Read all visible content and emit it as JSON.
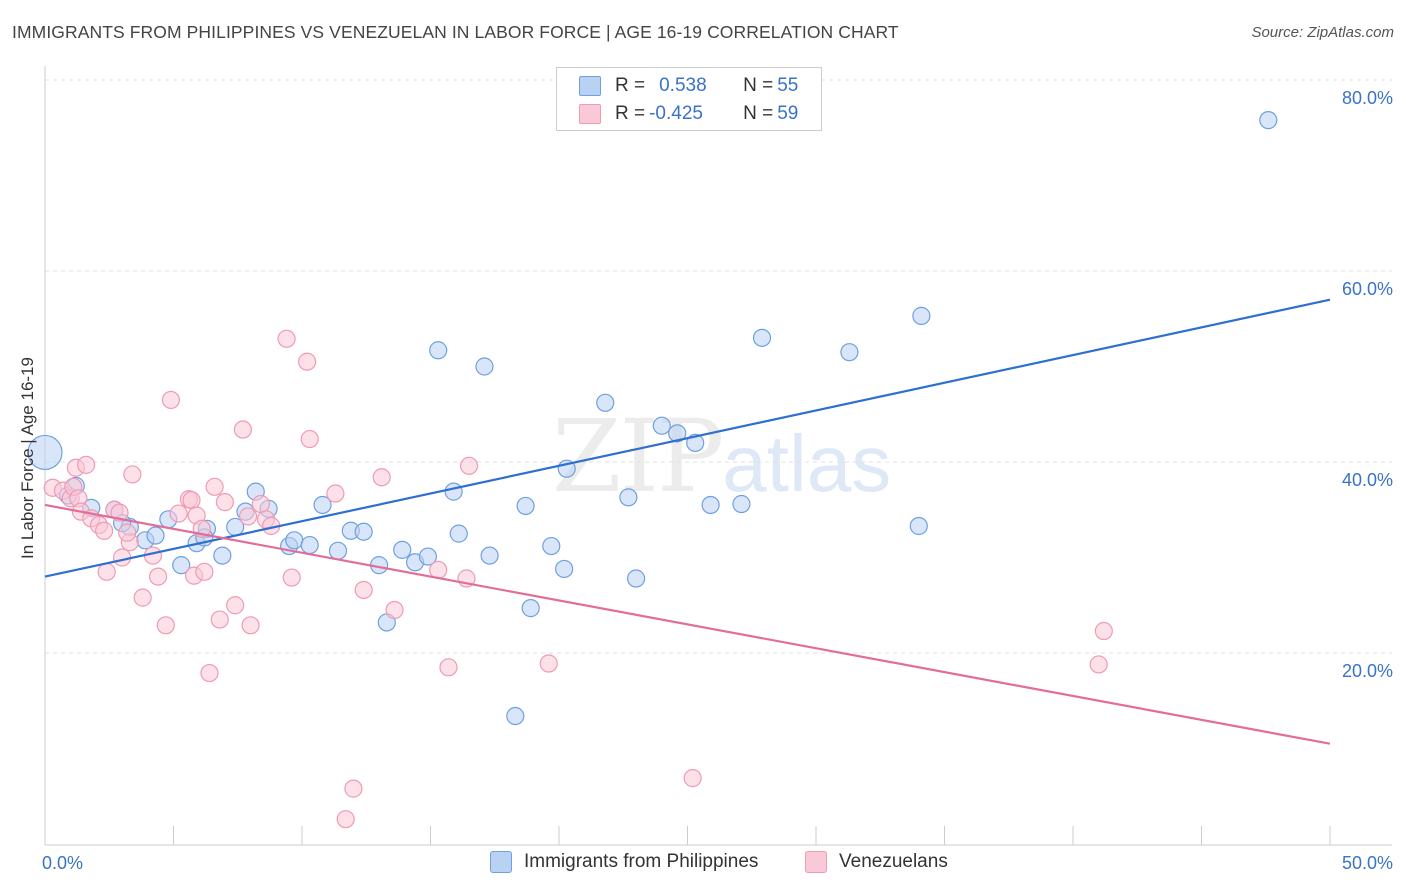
{
  "title": "IMMIGRANTS FROM PHILIPPINES VS VENEZUELAN IN LABOR FORCE | AGE 16-19 CORRELATION CHART",
  "source": "Source: ZipAtlas.com",
  "watermark": {
    "zip": "ZIP",
    "atlas": "atlas"
  },
  "legend": {
    "rows": [
      {
        "r_label": "R = ",
        "r_value": "0.538",
        "n_label": "N = ",
        "n_value": "55",
        "color": "#a8c8f0"
      },
      {
        "r_label": "R = ",
        "r_value": "-0.425",
        "n_label": "N = ",
        "n_value": "59",
        "color": "#f6b8cc"
      }
    ]
  },
  "bottom_legend": [
    "Immigrants from Philippines",
    "Venezuelans"
  ],
  "chart_data": {
    "type": "scatter",
    "title": "IMMIGRANTS FROM PHILIPPINES VS VENEZUELAN IN LABOR FORCE | AGE 16-19 CORRELATION CHART",
    "xlabel": "",
    "ylabel": "In Labor Force | Age 16-19",
    "xlim": [
      0,
      50
    ],
    "ylim": [
      0,
      80
    ],
    "x_tick_labels": [
      "0.0%",
      "50.0%"
    ],
    "y_tick_labels": [
      "20.0%",
      "40.0%",
      "60.0%",
      "80.0%"
    ],
    "y_ticks": [
      20,
      40,
      60,
      80
    ],
    "grid": true,
    "legend_position": "top-center",
    "series": [
      {
        "name": "Immigrants from Philippines",
        "color": "#6fa0e0",
        "fill": "#b9d2f4",
        "line_color": "#2f6fcf",
        "trend": {
          "x": [
            0,
            50
          ],
          "y": [
            28.0,
            57.0
          ]
        },
        "points": [
          [
            0.0,
            41.0
          ],
          [
            0.9,
            36.5
          ],
          [
            1.8,
            35.2
          ],
          [
            2.7,
            35.0
          ],
          [
            3.3,
            33.2
          ],
          [
            3.9,
            31.8
          ],
          [
            4.3,
            32.3
          ],
          [
            4.8,
            34.0
          ],
          [
            5.3,
            29.2
          ],
          [
            5.9,
            31.5
          ],
          [
            6.3,
            33.0
          ],
          [
            6.9,
            30.2
          ],
          [
            7.4,
            33.2
          ],
          [
            7.8,
            34.8
          ],
          [
            8.2,
            36.9
          ],
          [
            8.7,
            35.1
          ],
          [
            9.5,
            31.2
          ],
          [
            9.7,
            31.8
          ],
          [
            10.3,
            31.3
          ],
          [
            10.8,
            35.5
          ],
          [
            11.4,
            30.7
          ],
          [
            11.9,
            32.8
          ],
          [
            12.4,
            32.7
          ],
          [
            13.0,
            29.2
          ],
          [
            13.3,
            23.2
          ],
          [
            13.9,
            30.8
          ],
          [
            14.4,
            29.5
          ],
          [
            14.9,
            30.1
          ],
          [
            15.3,
            51.7
          ],
          [
            15.9,
            36.9
          ],
          [
            16.1,
            32.5
          ],
          [
            17.1,
            50.0
          ],
          [
            17.3,
            30.2
          ],
          [
            18.7,
            35.4
          ],
          [
            18.9,
            24.7
          ],
          [
            18.3,
            13.4
          ],
          [
            19.7,
            31.2
          ],
          [
            20.2,
            28.8
          ],
          [
            20.3,
            39.3
          ],
          [
            21.8,
            46.2
          ],
          [
            22.7,
            36.3
          ],
          [
            23.0,
            27.8
          ],
          [
            24.0,
            43.8
          ],
          [
            24.6,
            43.0
          ],
          [
            25.3,
            42.0
          ],
          [
            25.9,
            35.5
          ],
          [
            27.1,
            35.6
          ],
          [
            27.9,
            53.0
          ],
          [
            31.3,
            51.5
          ],
          [
            34.1,
            55.3
          ],
          [
            34.0,
            33.3
          ],
          [
            47.6,
            75.8
          ],
          [
            1.2,
            37.5
          ],
          [
            6.2,
            32.1
          ],
          [
            3.0,
            33.6
          ]
        ]
      },
      {
        "name": "Venezuelans",
        "color": "#f09ab4",
        "fill": "#f9c9d7",
        "line_color": "#e26d97",
        "trend": {
          "x": [
            0,
            50
          ],
          "y": [
            35.5,
            10.5
          ]
        },
        "points": [
          [
            0.3,
            37.3
          ],
          [
            0.7,
            37.0
          ],
          [
            1.0,
            36.2
          ],
          [
            1.1,
            37.4
          ],
          [
            1.2,
            39.4
          ],
          [
            1.3,
            36.2
          ],
          [
            1.4,
            34.8
          ],
          [
            1.6,
            39.7
          ],
          [
            1.8,
            34.1
          ],
          [
            2.1,
            33.4
          ],
          [
            2.3,
            32.8
          ],
          [
            2.4,
            28.5
          ],
          [
            2.7,
            35.0
          ],
          [
            2.9,
            34.7
          ],
          [
            3.0,
            30.0
          ],
          [
            3.3,
            31.6
          ],
          [
            3.4,
            38.7
          ],
          [
            3.8,
            25.8
          ],
          [
            4.2,
            30.2
          ],
          [
            4.4,
            28.0
          ],
          [
            4.7,
            22.9
          ],
          [
            4.9,
            46.5
          ],
          [
            5.2,
            34.6
          ],
          [
            5.6,
            36.1
          ],
          [
            5.7,
            36.0
          ],
          [
            5.8,
            28.1
          ],
          [
            5.9,
            34.4
          ],
          [
            6.2,
            28.5
          ],
          [
            6.4,
            17.9
          ],
          [
            6.6,
            37.4
          ],
          [
            6.8,
            23.5
          ],
          [
            7.0,
            35.8
          ],
          [
            7.4,
            25.0
          ],
          [
            7.7,
            43.4
          ],
          [
            7.9,
            34.3
          ],
          [
            8.0,
            22.9
          ],
          [
            8.4,
            35.6
          ],
          [
            8.6,
            34.0
          ],
          [
            8.8,
            33.3
          ],
          [
            9.4,
            52.9
          ],
          [
            9.6,
            27.9
          ],
          [
            10.2,
            50.5
          ],
          [
            10.3,
            42.4
          ],
          [
            11.3,
            36.7
          ],
          [
            11.7,
            2.6
          ],
          [
            12.0,
            5.8
          ],
          [
            12.4,
            26.6
          ],
          [
            13.1,
            38.4
          ],
          [
            13.6,
            24.5
          ],
          [
            15.3,
            28.7
          ],
          [
            15.7,
            18.5
          ],
          [
            16.4,
            27.8
          ],
          [
            16.5,
            39.6
          ],
          [
            19.6,
            18.9
          ],
          [
            25.2,
            6.9
          ],
          [
            41.0,
            18.8
          ],
          [
            41.2,
            22.3
          ],
          [
            3.2,
            32.6
          ],
          [
            6.1,
            33.0
          ]
        ]
      }
    ]
  }
}
